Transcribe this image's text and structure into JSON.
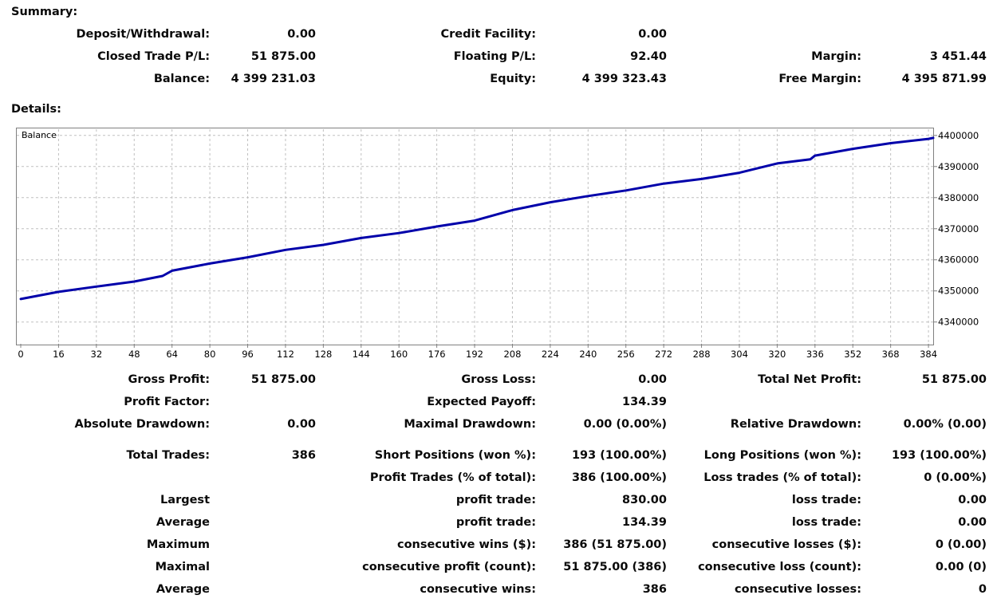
{
  "summary": {
    "heading": "Summary:",
    "rows": [
      [
        {
          "label": "Deposit/Withdrawal:",
          "value": "0.00"
        },
        {
          "label": "Credit Facility:",
          "value": "0.00"
        },
        {
          "label": "",
          "value": ""
        }
      ],
      [
        {
          "label": "Closed Trade P/L:",
          "value": "51 875.00"
        },
        {
          "label": "Floating P/L:",
          "value": "92.40"
        },
        {
          "label": "Margin:",
          "value": "3 451.44"
        }
      ],
      [
        {
          "label": "Balance:",
          "value": "4 399 231.03"
        },
        {
          "label": "Equity:",
          "value": "4 399 323.43"
        },
        {
          "label": "Free Margin:",
          "value": "4 395 871.99"
        }
      ]
    ]
  },
  "details": {
    "heading": "Details:",
    "rows": [
      [
        {
          "label": "Gross Profit:",
          "value": "51 875.00"
        },
        {
          "label": "Gross Loss:",
          "value": "0.00"
        },
        {
          "label": "Total Net Profit:",
          "value": "51 875.00"
        }
      ],
      [
        {
          "label": "Profit Factor:",
          "value": ""
        },
        {
          "label": "Expected Payoff:",
          "value": "134.39"
        },
        {
          "label": "",
          "value": ""
        }
      ],
      [
        {
          "label": "Absolute Drawdown:",
          "value": "0.00"
        },
        {
          "label": "Maximal Drawdown:",
          "value": "0.00 (0.00%)"
        },
        {
          "label": "Relative Drawdown:",
          "value": "0.00% (0.00)"
        }
      ],
      [
        {
          "label": "Total Trades:",
          "value": "386"
        },
        {
          "label": "Short Positions (won %):",
          "value": "193 (100.00%)"
        },
        {
          "label": "Long Positions (won %):",
          "value": "193 (100.00%)"
        }
      ],
      [
        {
          "label": "",
          "value": ""
        },
        {
          "label": "Profit Trades (% of total):",
          "value": "386 (100.00%)"
        },
        {
          "label": "Loss trades (% of total):",
          "value": "0 (0.00%)"
        }
      ],
      [
        {
          "label": "Largest",
          "value": ""
        },
        {
          "label": "profit trade:",
          "value": "830.00"
        },
        {
          "label": "loss trade:",
          "value": "0.00"
        }
      ],
      [
        {
          "label": "Average",
          "value": ""
        },
        {
          "label": "profit trade:",
          "value": "134.39"
        },
        {
          "label": "loss trade:",
          "value": "0.00"
        }
      ],
      [
        {
          "label": "Maximum",
          "value": ""
        },
        {
          "label": "consecutive wins ($):",
          "value": "386 (51 875.00)"
        },
        {
          "label": "consecutive losses ($):",
          "value": "0 (0.00)"
        }
      ],
      [
        {
          "label": "Maximal",
          "value": ""
        },
        {
          "label": "consecutive profit (count):",
          "value": "51 875.00 (386)"
        },
        {
          "label": "consecutive loss (count):",
          "value": "0.00 (0)"
        }
      ],
      [
        {
          "label": "Average",
          "value": ""
        },
        {
          "label": "consecutive wins:",
          "value": "386"
        },
        {
          "label": "consecutive losses:",
          "value": "0"
        }
      ]
    ]
  },
  "chart_data": {
    "type": "line",
    "title": "Balance",
    "line_color": "#0000aa",
    "grid_color": "#c0c0c0",
    "xlim": [
      0,
      386
    ],
    "ylim": [
      4333000,
      4402000
    ],
    "x_ticks": [
      0,
      16,
      32,
      48,
      64,
      80,
      96,
      112,
      128,
      144,
      160,
      176,
      192,
      208,
      224,
      240,
      256,
      272,
      288,
      304,
      320,
      336,
      352,
      368,
      384
    ],
    "y_ticks": [
      4340000,
      4350000,
      4360000,
      4370000,
      4380000,
      4390000,
      4400000
    ],
    "series": [
      {
        "name": "Balance",
        "x": [
          0,
          16,
          32,
          48,
          60,
          64,
          80,
          96,
          112,
          128,
          144,
          160,
          176,
          192,
          208,
          224,
          240,
          256,
          272,
          288,
          304,
          320,
          334,
          336,
          352,
          368,
          384,
          386
        ],
        "y": [
          4347400,
          4349700,
          4351400,
          4353000,
          4354800,
          4356500,
          4358800,
          4360800,
          4363200,
          4364800,
          4367000,
          4368600,
          4370700,
          4372600,
          4376000,
          4378500,
          4380500,
          4382300,
          4384500,
          4386000,
          4388000,
          4391000,
          4392300,
          4393500,
          4395700,
          4397500,
          4398900,
          4399200
        ]
      }
    ]
  }
}
